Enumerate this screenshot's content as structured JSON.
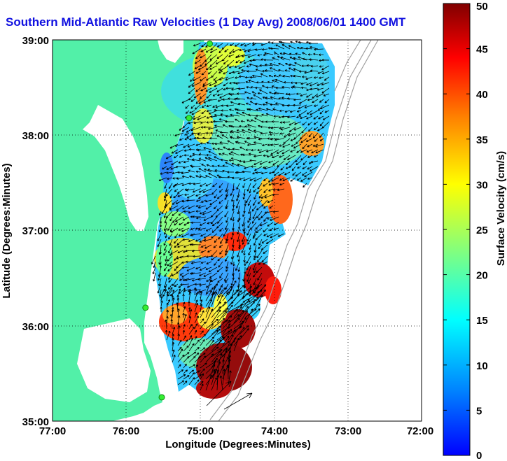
{
  "chart_data": {
    "type": "heatmap",
    "title": "Southern Mid-Atlantic Raw Velocities (1 Day Avg) 2008/06/01 1400 GMT",
    "xlabel": "Longitude (Degrees:Minutes)",
    "ylabel": "Latitude (Degrees:Minutes)",
    "x_ticks": [
      "77:00",
      "76:00",
      "75:00",
      "74:00",
      "73:00",
      "72:00"
    ],
    "y_ticks": [
      "39:00",
      "38:00",
      "37:00",
      "36:00",
      "35:00"
    ],
    "xlim": [
      -77,
      -72
    ],
    "ylim": [
      35,
      39
    ],
    "grid": true,
    "colorbar": {
      "label": "Surface Velocity (cm/s)",
      "ticks": [
        "0",
        "5",
        "10",
        "15",
        "20",
        "25",
        "30",
        "35",
        "40",
        "45",
        "50"
      ],
      "range": [
        0,
        50
      ],
      "colormap": [
        "#0000ff",
        "#0080ff",
        "#00ffff",
        "#80ff80",
        "#ffff00",
        "#ff8000",
        "#ff0000",
        "#800000"
      ]
    },
    "land_color": "#52f0a8",
    "sites": [
      {
        "lon": -74.87,
        "lat": 38.96
      },
      {
        "lon": -75.15,
        "lat": 38.18
      },
      {
        "lon": -75.74,
        "lat": 36.19
      },
      {
        "lon": -75.52,
        "lat": 35.25
      }
    ]
  }
}
